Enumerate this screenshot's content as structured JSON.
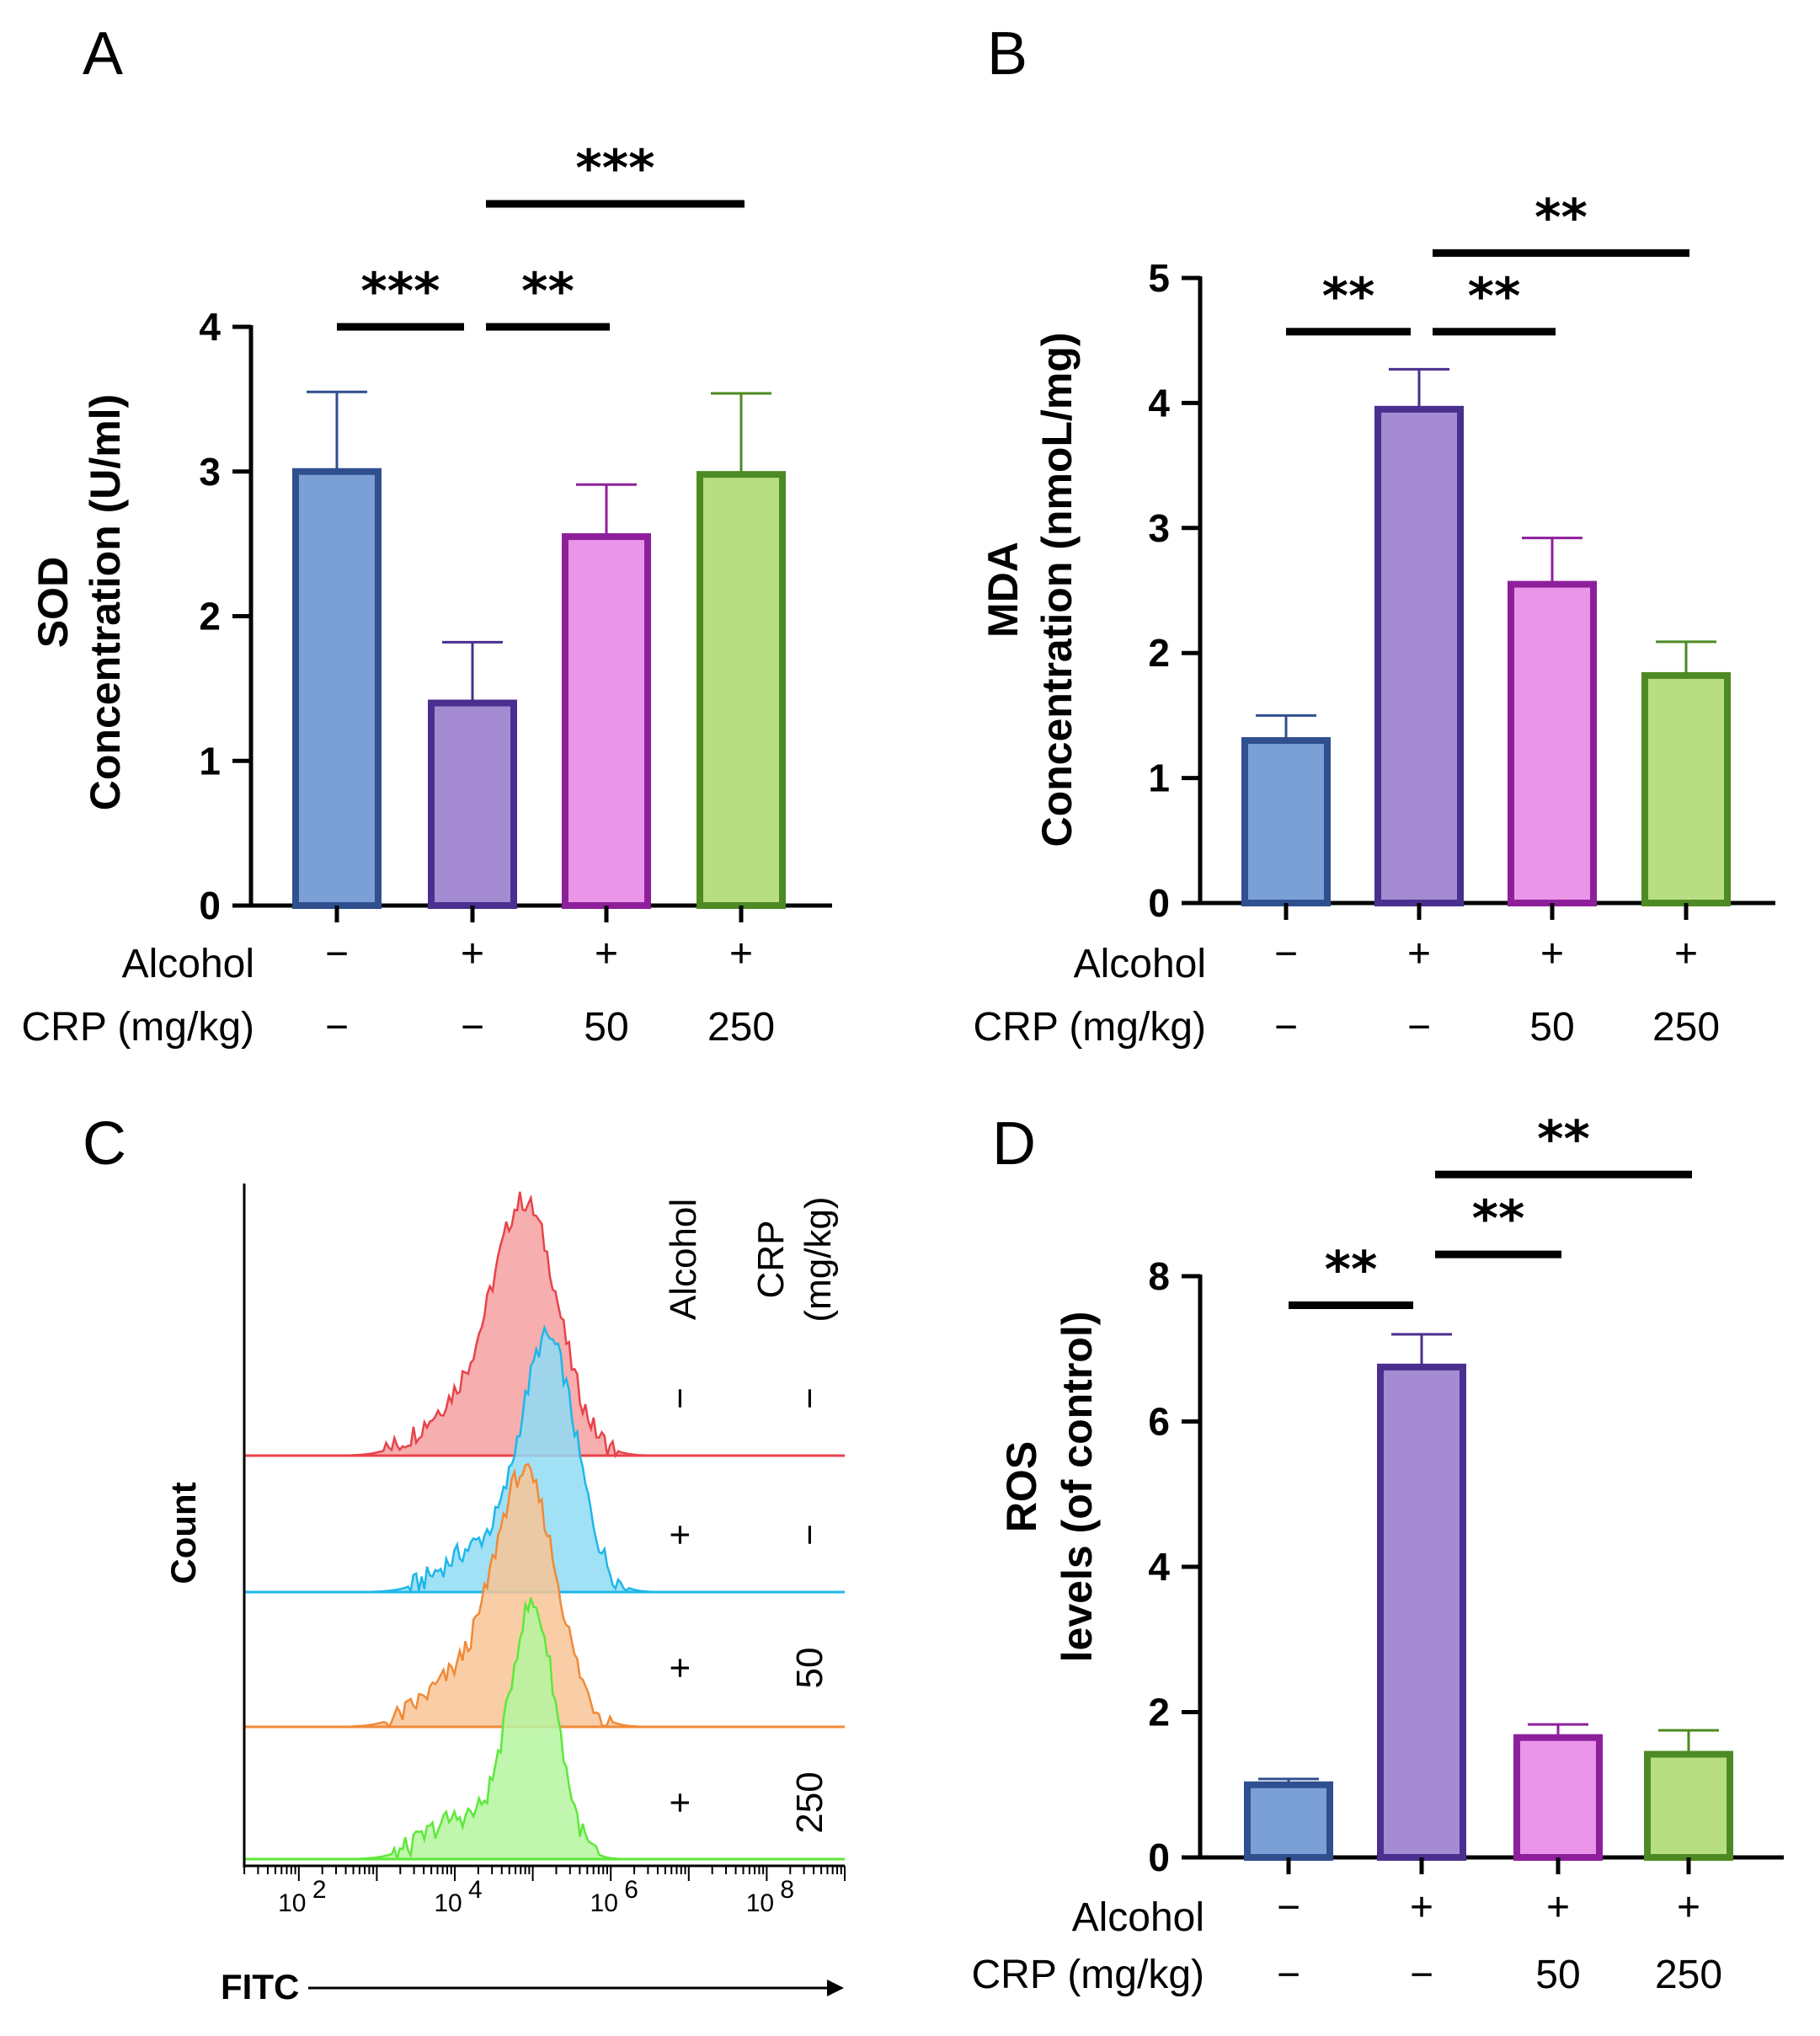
{
  "chart_data": [
    {
      "panel": "A",
      "type": "bar",
      "ylabel": [
        "SOD",
        "Concentration (U/ml)"
      ],
      "ylim": [
        0,
        4
      ],
      "yticks": [
        "0",
        "1",
        "2",
        "3",
        "4"
      ],
      "groups": [
        {
          "alcohol": "−",
          "crp": "−",
          "value": 3.0,
          "error": 0.55,
          "fill": "#7ba0d6",
          "edge": "#2f4f8f"
        },
        {
          "alcohol": "+",
          "crp": "−",
          "value": 1.4,
          "error": 0.42,
          "fill": "#a48bd2",
          "edge": "#4a2f8e"
        },
        {
          "alcohol": "+",
          "crp": "50",
          "value": 2.55,
          "error": 0.36,
          "fill": "#ea95e8",
          "edge": "#8e1f9b"
        },
        {
          "alcohol": "+",
          "crp": "250",
          "value": 2.98,
          "error": 0.56,
          "fill": "#b8de84",
          "edge": "#4e8a23"
        }
      ],
      "significance": [
        {
          "from": 0,
          "to": 1,
          "label": "***",
          "y": 4.0
        },
        {
          "from": 1,
          "to": 2,
          "label": "**",
          "y": 4.0
        },
        {
          "from": 1,
          "to": 3,
          "label": "***",
          "y": 4.85
        }
      ]
    },
    {
      "panel": "B",
      "type": "bar",
      "ylabel": [
        "MDA",
        "Concentration (nmoL/mg)"
      ],
      "ylim": [
        0,
        5
      ],
      "yticks": [
        "0",
        "1",
        "2",
        "3",
        "4",
        "5"
      ],
      "groups": [
        {
          "alcohol": "−",
          "crp": "−",
          "value": 1.3,
          "error": 0.2,
          "fill": "#7ba0d6",
          "edge": "#2f4f8f"
        },
        {
          "alcohol": "+",
          "crp": "−",
          "value": 3.95,
          "error": 0.32,
          "fill": "#a48bd2",
          "edge": "#4a2f8e"
        },
        {
          "alcohol": "+",
          "crp": "50",
          "value": 2.55,
          "error": 0.37,
          "fill": "#ea95e8",
          "edge": "#8e1f9b"
        },
        {
          "alcohol": "+",
          "crp": "250",
          "value": 1.82,
          "error": 0.27,
          "fill": "#b8de84",
          "edge": "#4e8a23"
        }
      ],
      "significance": [
        {
          "from": 0,
          "to": 1,
          "label": "**",
          "y": 4.57
        },
        {
          "from": 1,
          "to": 2,
          "label": "**",
          "y": 4.57
        },
        {
          "from": 1,
          "to": 3,
          "label": "**",
          "y": 5.2
        }
      ]
    },
    {
      "panel": "D",
      "type": "bar",
      "ylabel": [
        "ROS",
        "levels (of control)"
      ],
      "ylim": [
        0,
        8
      ],
      "yticks": [
        "0",
        "2",
        "4",
        "6",
        "8"
      ],
      "groups": [
        {
          "alcohol": "−",
          "crp": "−",
          "value": 1.0,
          "error": 0.08,
          "fill": "#7ba0d6",
          "edge": "#2f4f8f"
        },
        {
          "alcohol": "+",
          "crp": "−",
          "value": 6.75,
          "error": 0.45,
          "fill": "#a48bd2",
          "edge": "#4a2f8e"
        },
        {
          "alcohol": "+",
          "crp": "50",
          "value": 1.65,
          "error": 0.18,
          "fill": "#ea95e8",
          "edge": "#8e1f9b"
        },
        {
          "alcohol": "+",
          "crp": "250",
          "value": 1.42,
          "error": 0.33,
          "fill": "#b8de84",
          "edge": "#4e8a23"
        }
      ],
      "significance": [
        {
          "from": 0,
          "to": 1,
          "label": "**",
          "y": 7.6
        },
        {
          "from": 1,
          "to": 2,
          "label": "**",
          "y": 8.3
        },
        {
          "from": 1,
          "to": 3,
          "label": "**",
          "y": 9.4
        }
      ]
    },
    {
      "panel": "C",
      "type": "histogram",
      "xlabel": "FITC",
      "ylabel": "Count",
      "xscale": "log",
      "xticks": [
        "10",
        "10",
        "10",
        "10"
      ],
      "xtick_exponents": [
        "2",
        "4",
        "6",
        "8"
      ],
      "column_headers": [
        "Alcohol",
        "CRP",
        "(mg/kg)"
      ],
      "tracks": [
        {
          "alcohol": "−",
          "crp": "−",
          "peak_log": 4.9,
          "spread": 0.42,
          "fill": "#f4a0a0",
          "edge": "#e8434b"
        },
        {
          "alcohol": "+",
          "crp": "−",
          "peak_log": 5.2,
          "spread": 0.36,
          "fill": "#8fdcf4",
          "edge": "#1eb7ea"
        },
        {
          "alcohol": "+",
          "crp": "50",
          "peak_log": 4.9,
          "spread": 0.4,
          "fill": "#f8c497",
          "edge": "#f08a38"
        },
        {
          "alcohol": "+",
          "crp": "250",
          "peak_log": 5.0,
          "spread": 0.3,
          "fill": "#b5f5a0",
          "edge": "#5ee83b"
        }
      ]
    }
  ],
  "labels": {
    "panel_a": "A",
    "panel_b": "B",
    "panel_c": "C",
    "panel_d": "D",
    "alcohol": "Alcohol",
    "crp": "CRP (mg/kg)"
  }
}
